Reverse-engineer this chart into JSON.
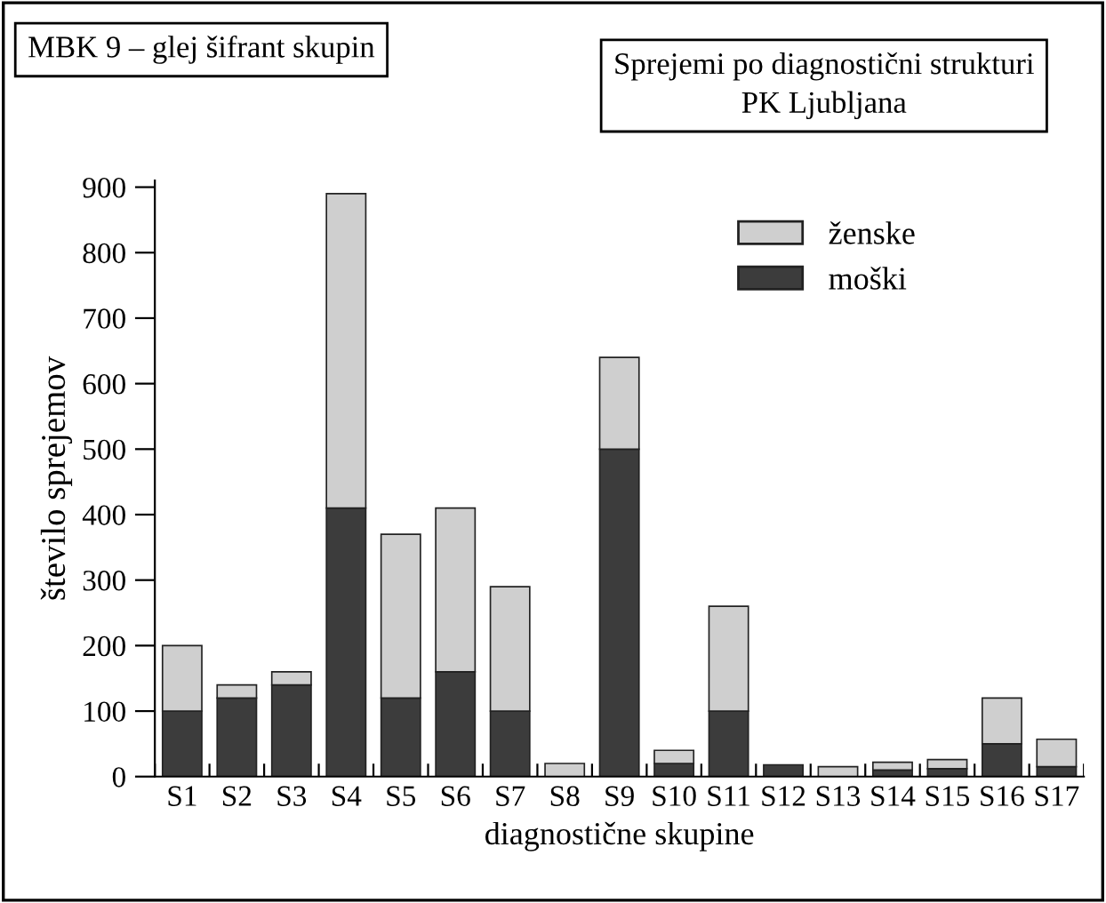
{
  "chart_data": {
    "type": "bar",
    "stacked": true,
    "title": "Sprejemi po diagnostični strukturi\nPK Ljubljana",
    "annotations": [
      "MBK 9 – glej šifrant skupin"
    ],
    "xlabel": "diagnostične skupine",
    "ylabel": "število sprejemov",
    "categories": [
      "S1",
      "S2",
      "S3",
      "S4",
      "S5",
      "S6",
      "S7",
      "S8",
      "S9",
      "S10",
      "S11",
      "S12",
      "S13",
      "S14",
      "S15",
      "S16",
      "S17"
    ],
    "series": [
      {
        "name": "moški",
        "color": "#3c3c3c",
        "values": [
          100,
          120,
          140,
          410,
          120,
          160,
          100,
          0,
          500,
          20,
          100,
          18,
          0,
          10,
          12,
          50,
          15
        ]
      },
      {
        "name": "ženske",
        "color": "#cfcfcf",
        "values": [
          100,
          20,
          20,
          480,
          250,
          250,
          190,
          20,
          140,
          20,
          160,
          0,
          15,
          12,
          14,
          70,
          42
        ]
      }
    ],
    "ylim": [
      0,
      910
    ],
    "yticks": [
      0,
      100,
      200,
      300,
      400,
      500,
      600,
      700,
      800,
      900
    ],
    "grid": false,
    "legend": "top right"
  }
}
